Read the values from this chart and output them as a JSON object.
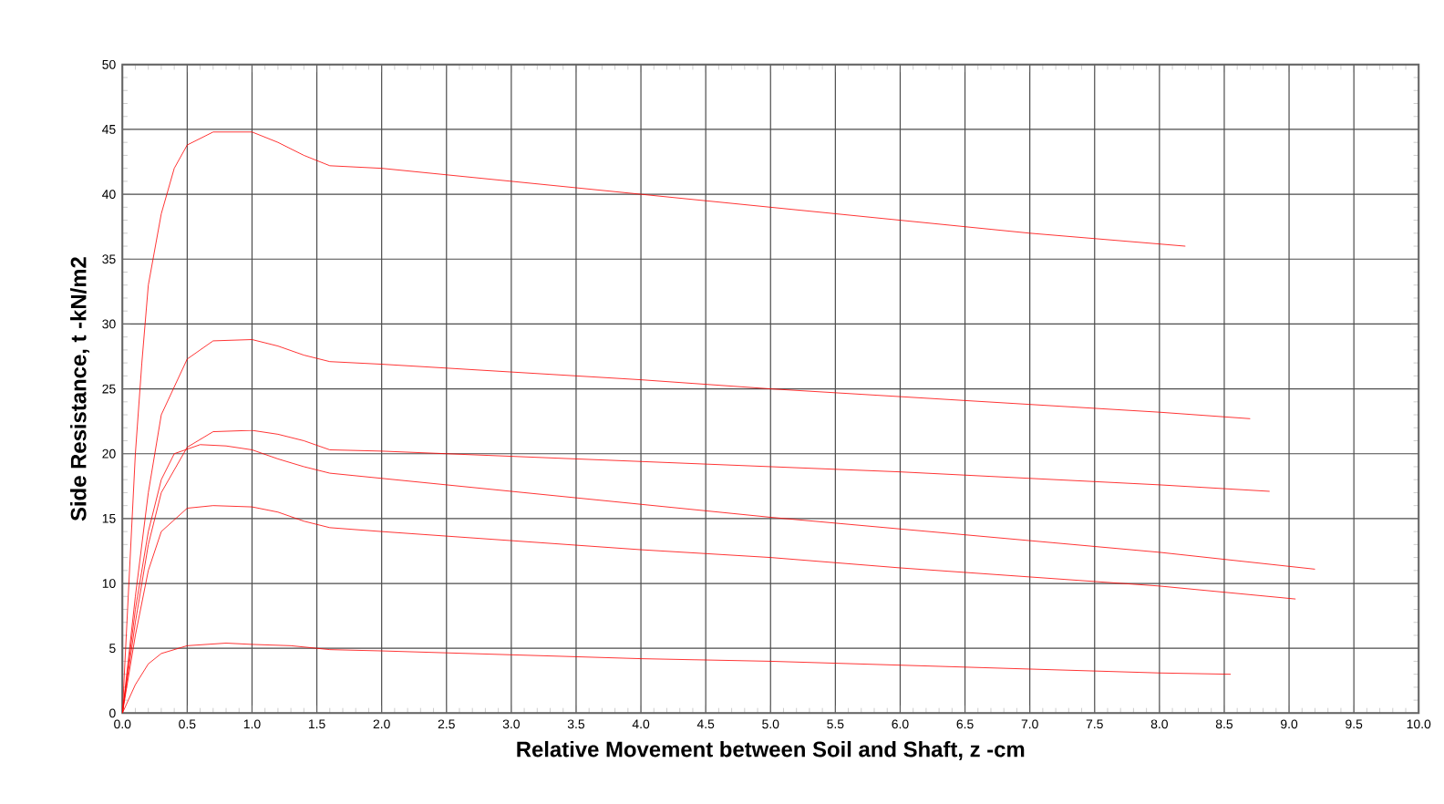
{
  "chart_data": {
    "type": "line",
    "xlabel": "Relative Movement between Soil and Shaft, z -cm",
    "ylabel": "Side Resistance, t -kN/m2",
    "xlim": [
      0,
      10
    ],
    "ylim": [
      0,
      50
    ],
    "xticks": [
      {
        "value": 0,
        "label": "0.0"
      },
      {
        "value": 0.5,
        "label": "0.5"
      },
      {
        "value": 1,
        "label": "1.0"
      },
      {
        "value": 1.5,
        "label": "1.5"
      },
      {
        "value": 2,
        "label": "2.0"
      },
      {
        "value": 2.5,
        "label": "2.5"
      },
      {
        "value": 3,
        "label": "3.0"
      },
      {
        "value": 3.5,
        "label": "3.5"
      },
      {
        "value": 4,
        "label": "4.0"
      },
      {
        "value": 4.5,
        "label": "4.5"
      },
      {
        "value": 5,
        "label": "5.0"
      },
      {
        "value": 5.5,
        "label": "5.5"
      },
      {
        "value": 6,
        "label": "6.0"
      },
      {
        "value": 6.5,
        "label": "6.5"
      },
      {
        "value": 7,
        "label": "7.0"
      },
      {
        "value": 7.5,
        "label": "7.5"
      },
      {
        "value": 8,
        "label": "8.0"
      },
      {
        "value": 8.5,
        "label": "8.5"
      },
      {
        "value": 9,
        "label": "9.0"
      },
      {
        "value": 9.5,
        "label": "9.5"
      },
      {
        "value": 10,
        "label": "10.0"
      }
    ],
    "yticks": [
      0,
      5,
      10,
      15,
      20,
      25,
      30,
      35,
      40,
      45,
      50
    ],
    "grid": true,
    "marker": "none",
    "line_style": "solid",
    "series": [
      {
        "color": "#ff0000",
        "x": [
          0,
          0.05,
          0.1,
          0.15,
          0.2,
          0.3,
          0.4,
          0.5,
          0.7,
          1.0,
          1.2,
          1.4,
          1.6,
          2.0,
          3.0,
          4.0,
          5.0,
          6.0,
          7.0,
          8.2
        ],
        "values": [
          0,
          10,
          20,
          27,
          33,
          38.5,
          42,
          43.8,
          44.8,
          44.8,
          44,
          43,
          42.2,
          42,
          41,
          40,
          39,
          38,
          37,
          36
        ]
      },
      {
        "color": "#ff0000",
        "x": [
          0,
          0.1,
          0.2,
          0.3,
          0.5,
          0.7,
          1.0,
          1.2,
          1.4,
          1.6,
          2.0,
          3.0,
          4.0,
          5.0,
          6.0,
          7.0,
          8.0,
          8.7
        ],
        "values": [
          0,
          9,
          17,
          23,
          27.3,
          28.7,
          28.8,
          28.3,
          27.6,
          27.1,
          26.9,
          26.3,
          25.7,
          25,
          24.4,
          23.8,
          23.2,
          22.7
        ]
      },
      {
        "color": "#ff0000",
        "x": [
          0,
          0.1,
          0.2,
          0.3,
          0.5,
          0.7,
          1.0,
          1.2,
          1.4,
          1.6,
          2.0,
          3.0,
          4.0,
          5.0,
          6.0,
          7.0,
          8.0,
          8.85
        ],
        "values": [
          0,
          7,
          13,
          17,
          20.5,
          21.7,
          21.8,
          21.5,
          21,
          20.3,
          20.2,
          19.8,
          19.4,
          19,
          18.6,
          18.1,
          17.6,
          17.1
        ]
      },
      {
        "color": "#ff0000",
        "x": [
          0,
          0.1,
          0.2,
          0.3,
          0.4,
          0.6,
          0.8,
          1.0,
          1.2,
          1.4,
          1.6,
          2.0,
          3.0,
          4.0,
          5.0,
          6.0,
          7.0,
          8.0,
          9.2
        ],
        "values": [
          0,
          8,
          14,
          18,
          20,
          20.7,
          20.6,
          20.3,
          19.6,
          19,
          18.5,
          18.1,
          17.1,
          16.1,
          15.1,
          14.2,
          13.3,
          12.4,
          11.1
        ]
      },
      {
        "color": "#ff0000",
        "x": [
          0,
          0.1,
          0.2,
          0.3,
          0.5,
          0.7,
          1.0,
          1.2,
          1.4,
          1.6,
          2.0,
          3.0,
          4.0,
          5.0,
          6.0,
          7.0,
          8.0,
          9.05
        ],
        "values": [
          0,
          6,
          11,
          14,
          15.8,
          16,
          15.9,
          15.5,
          14.8,
          14.3,
          14,
          13.3,
          12.6,
          12,
          11.2,
          10.5,
          9.8,
          8.8
        ]
      },
      {
        "color": "#ff0000",
        "x": [
          0,
          0.1,
          0.2,
          0.3,
          0.5,
          0.8,
          1.0,
          1.3,
          1.6,
          2.0,
          3.0,
          4.0,
          5.0,
          6.0,
          7.0,
          8.0,
          8.55
        ],
        "values": [
          0,
          2.2,
          3.8,
          4.6,
          5.2,
          5.4,
          5.3,
          5.2,
          4.9,
          4.8,
          4.5,
          4.2,
          4,
          3.7,
          3.4,
          3.1,
          3
        ]
      }
    ]
  }
}
